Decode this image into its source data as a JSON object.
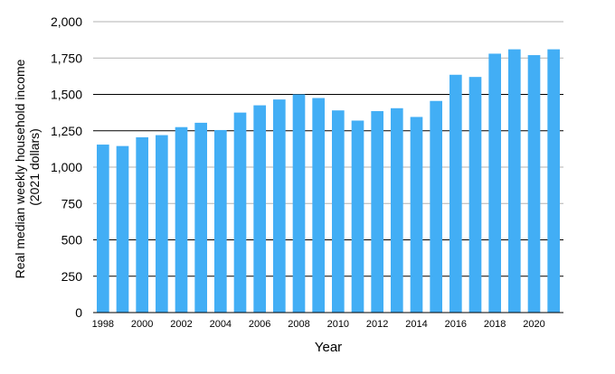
{
  "chart_data": {
    "type": "bar",
    "title": "",
    "xlabel": "Year",
    "ylabel": "Real median weekly household income (2021 dollars)",
    "ylabel_lines": [
      "Real median weekly household income",
      "(2021 dollars)"
    ],
    "ylim": [
      0,
      2000
    ],
    "yticks": [
      0,
      250,
      500,
      750,
      1000,
      1250,
      1500,
      1750,
      2000
    ],
    "ytick_labels": [
      "0",
      "250",
      "500",
      "750",
      "1,000",
      "1,250",
      "1,500",
      "1,750",
      "2,000"
    ],
    "categories": [
      "1998",
      "1999",
      "2000",
      "2001",
      "2002",
      "2003",
      "2004",
      "2005",
      "2006",
      "2007",
      "2008",
      "2009",
      "2010",
      "2011",
      "2012",
      "2013",
      "2014",
      "2015",
      "2016",
      "2017",
      "2018",
      "2019",
      "2020",
      "2021"
    ],
    "xtick_labels": [
      "1998",
      "2000",
      "2002",
      "2004",
      "2006",
      "2008",
      "2010",
      "2012",
      "2014",
      "2016",
      "2018",
      "2020"
    ],
    "values": [
      1155,
      1145,
      1205,
      1220,
      1275,
      1305,
      1255,
      1375,
      1425,
      1465,
      1500,
      1475,
      1390,
      1320,
      1385,
      1405,
      1345,
      1455,
      1635,
      1620,
      1780,
      1810,
      1770,
      1810
    ],
    "bar_color": "#42aef5",
    "grid": true,
    "legend": "none"
  }
}
